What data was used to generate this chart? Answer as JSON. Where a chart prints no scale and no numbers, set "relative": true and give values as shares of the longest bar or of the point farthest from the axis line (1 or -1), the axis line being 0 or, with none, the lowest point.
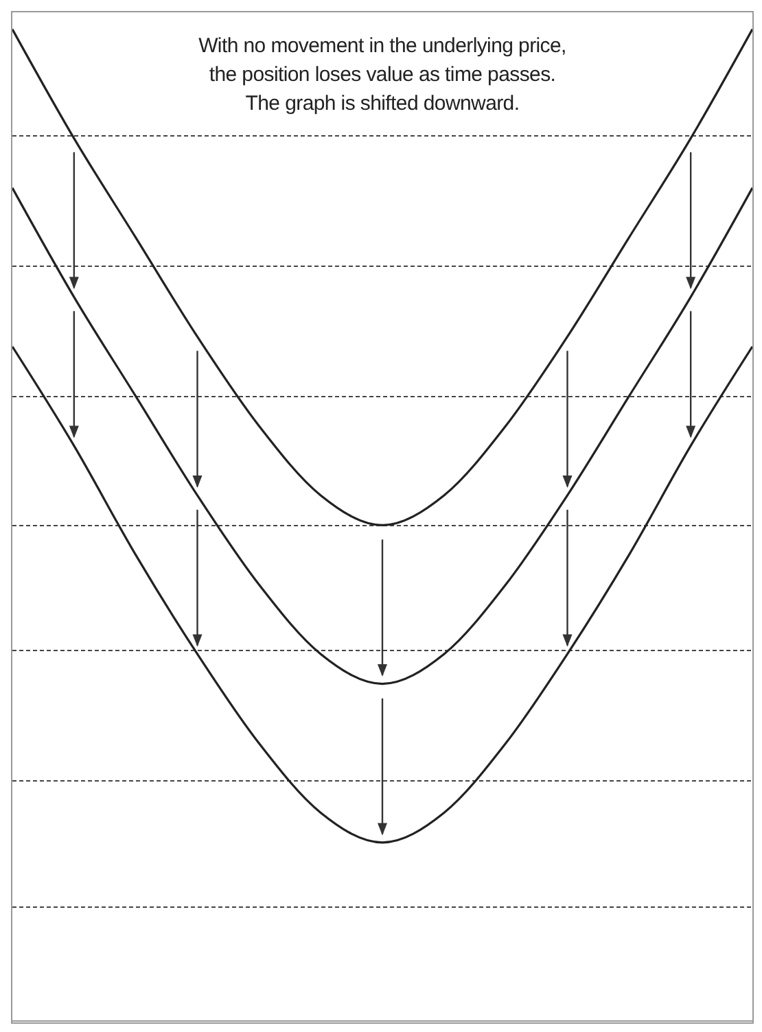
{
  "chart_data": {
    "type": "line",
    "relative": true,
    "categories": [
      null,
      null,
      null,
      null,
      null,
      null,
      null,
      null,
      null,
      null,
      null,
      null,
      null
    ],
    "series": [
      {
        "color": "#222222",
        "values": [
          1,
          0.89,
          0.79,
          0.69,
          0.6,
          0.53,
          0.5,
          0.53,
          0.6,
          0.69,
          0.79,
          0.89,
          1
        ]
      },
      {
        "color": "#222222",
        "values": [
          0.84,
          0.73,
          0.63,
          0.53,
          0.44,
          0.37,
          0.34,
          0.37,
          0.44,
          0.53,
          0.63,
          0.73,
          0.84
        ]
      },
      {
        "color": "#222222",
        "values": [
          0.68,
          0.58,
          0.47,
          0.37,
          0.28,
          0.21,
          0.18,
          0.21,
          0.28,
          0.37,
          0.47,
          0.58,
          0.68
        ]
      }
    ],
    "annotations": [
      "With no movement in the underlying price,",
      "the position loses value as time passes.",
      "The graph is shifted downward."
    ],
    "grid": "y",
    "marker": "none",
    "line_style": "solid"
  }
}
